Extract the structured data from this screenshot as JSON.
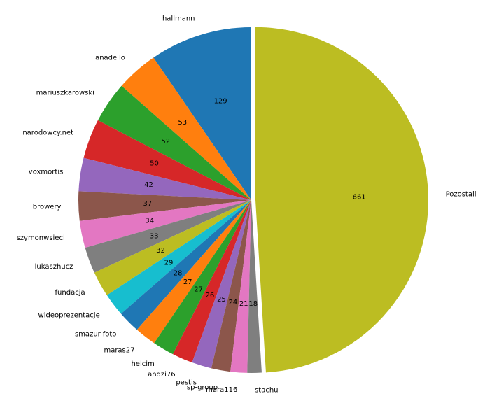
{
  "chart_data": {
    "type": "pie",
    "title": "",
    "start_angle_deg": 90,
    "counterclockwise": true,
    "explode_index": 22,
    "slices": [
      {
        "label": "hallmann",
        "value": 129,
        "color": "#1f77b4"
      },
      {
        "label": "anadello",
        "value": 53,
        "color": "#ff7f0e"
      },
      {
        "label": "mariuszkarowski",
        "value": 52,
        "color": "#2ca02c"
      },
      {
        "label": "narodowcy.net",
        "value": 50,
        "color": "#d62728"
      },
      {
        "label": "voxmortis",
        "value": 42,
        "color": "#9467bd"
      },
      {
        "label": "browery",
        "value": 37,
        "color": "#8c564b"
      },
      {
        "label": "szymonwsieci",
        "value": 34,
        "color": "#e377c2"
      },
      {
        "label": "lukaszhucz",
        "value": 33,
        "color": "#7f7f7f"
      },
      {
        "label": "fundacja",
        "value": 32,
        "color": "#bcbd22"
      },
      {
        "label": "wideoprezentacje",
        "value": 29,
        "color": "#17becf"
      },
      {
        "label": "smazur-foto",
        "value": 28,
        "color": "#1f77b4"
      },
      {
        "label": "maras27",
        "value": 27,
        "color": "#ff7f0e"
      },
      {
        "label": "helcim",
        "value": 27,
        "color": "#2ca02c"
      },
      {
        "label": "andzi76",
        "value": 26,
        "color": "#d62728"
      },
      {
        "label": "pestis",
        "value": 25,
        "color": "#9467bd"
      },
      {
        "label": "sp-group",
        "value": 24,
        "color": "#8c564b"
      },
      {
        "label": "mara116",
        "value": 21,
        "color": "#e377c2"
      },
      {
        "label": "stachu",
        "value": 18,
        "color": "#7f7f7f"
      },
      {
        "label": "Pozostali",
        "value": 661,
        "color": "#bcbd22"
      }
    ]
  }
}
